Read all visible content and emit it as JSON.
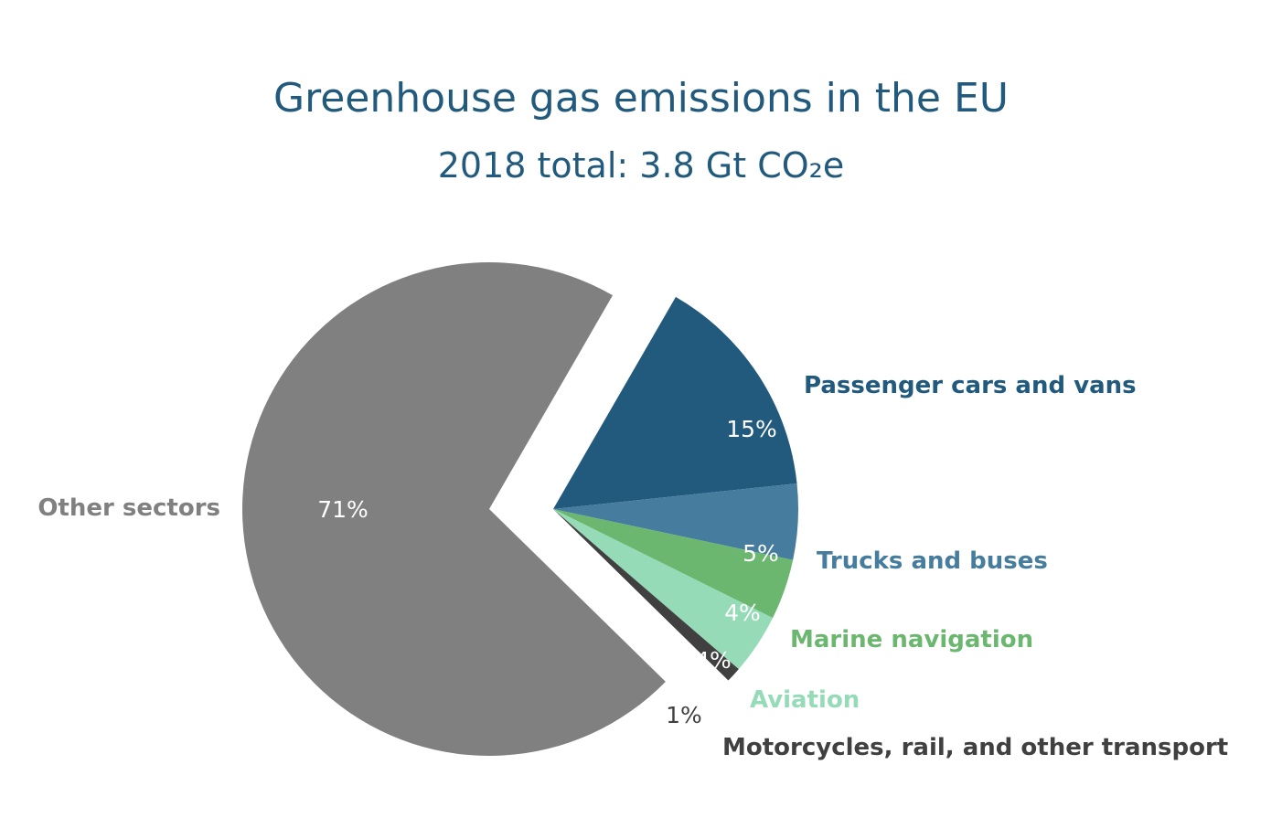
{
  "chart_data": {
    "type": "pie",
    "title": "Greenhouse gas emissions in the EU",
    "subtitle": "2018 total: 3.8 Gt CO₂e",
    "unit": "%",
    "slices": [
      {
        "name": "Passenger cars and vans",
        "value": 15,
        "label": "15%",
        "color": "#215a7d"
      },
      {
        "name": "Trucks and buses",
        "value": 5,
        "label": "5%",
        "color": "#467c9d"
      },
      {
        "name": "Marine navigation",
        "value": 4,
        "label": "4%",
        "color": "#6cb76f"
      },
      {
        "name": "Aviation",
        "value": 4,
        "label": "4%",
        "color": "#95dbb7"
      },
      {
        "name": "Motorcycles, rail, and other transport",
        "value": 1,
        "label": "1%",
        "color": "#404040"
      },
      {
        "name": "Other sectors",
        "value": 71,
        "label": "71%",
        "color": "#808080"
      }
    ],
    "colors": {
      "title": "#215a7d",
      "other_label": "#808080",
      "value_text_light": "#ffffff",
      "value_text_dark": "#404040"
    }
  }
}
